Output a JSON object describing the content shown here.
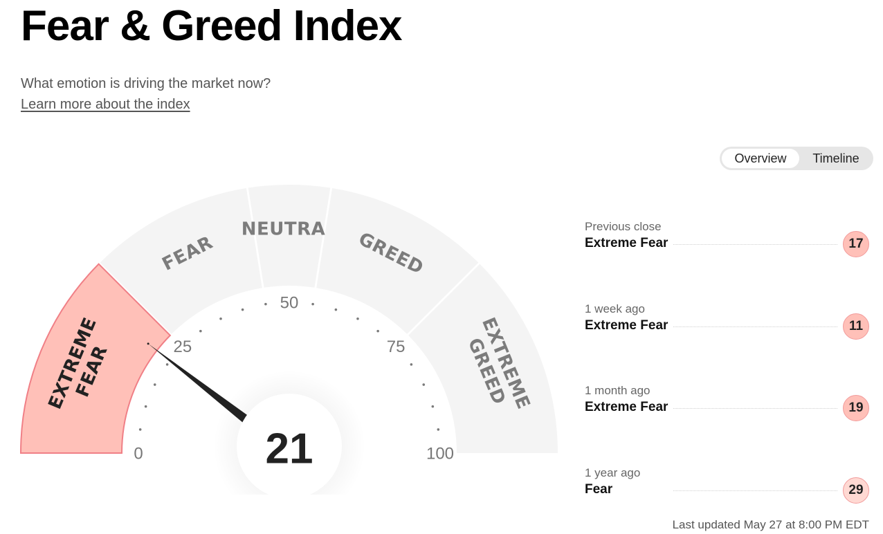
{
  "header": {
    "title": "Fear & Greed Index",
    "subtitle": "What emotion is driving the market now?",
    "learn_link": "Learn more about the index"
  },
  "view_toggle": {
    "options": [
      "Overview",
      "Timeline"
    ],
    "selected": "Overview"
  },
  "gauge": {
    "value": 21,
    "range": [
      0,
      100
    ],
    "tick_labels": [
      "0",
      "25",
      "50",
      "75",
      "100"
    ],
    "segments": [
      {
        "label_lines": [
          "EXTREME",
          "FEAR"
        ],
        "from": 0,
        "to": 25,
        "active": true
      },
      {
        "label_lines": [
          "FEAR"
        ],
        "from": 25,
        "to": 45,
        "active": false
      },
      {
        "label_lines": [
          "NEUTRAL"
        ],
        "from": 45,
        "to": 55,
        "active": false
      },
      {
        "label_lines": [
          "GREED"
        ],
        "from": 55,
        "to": 75,
        "active": false
      },
      {
        "label_lines": [
          "EXTREME",
          "GREED"
        ],
        "from": 75,
        "to": 100,
        "active": false
      }
    ]
  },
  "history": [
    {
      "label": "Previous close",
      "rating": "Extreme Fear",
      "value": "17"
    },
    {
      "label": "1 week ago",
      "rating": "Extreme Fear",
      "value": "11"
    },
    {
      "label": "1 month ago",
      "rating": "Extreme Fear",
      "value": "19"
    },
    {
      "label": "1 year ago",
      "rating": "Fear",
      "value": "29"
    }
  ],
  "footer": {
    "last_updated": "Last updated May 27 at 8:00 PM EDT"
  },
  "colors": {
    "segment_inactive": "#f4f4f4",
    "segment_active": "#ffc0b8",
    "segment_active_border": "#f07f86",
    "segment_text": "#7c7c7c",
    "segment_text_active": "#222222",
    "needle": "#222222",
    "badge_extreme_fear": "#ffc0b8",
    "badge_fear": "#ffd9d3"
  }
}
